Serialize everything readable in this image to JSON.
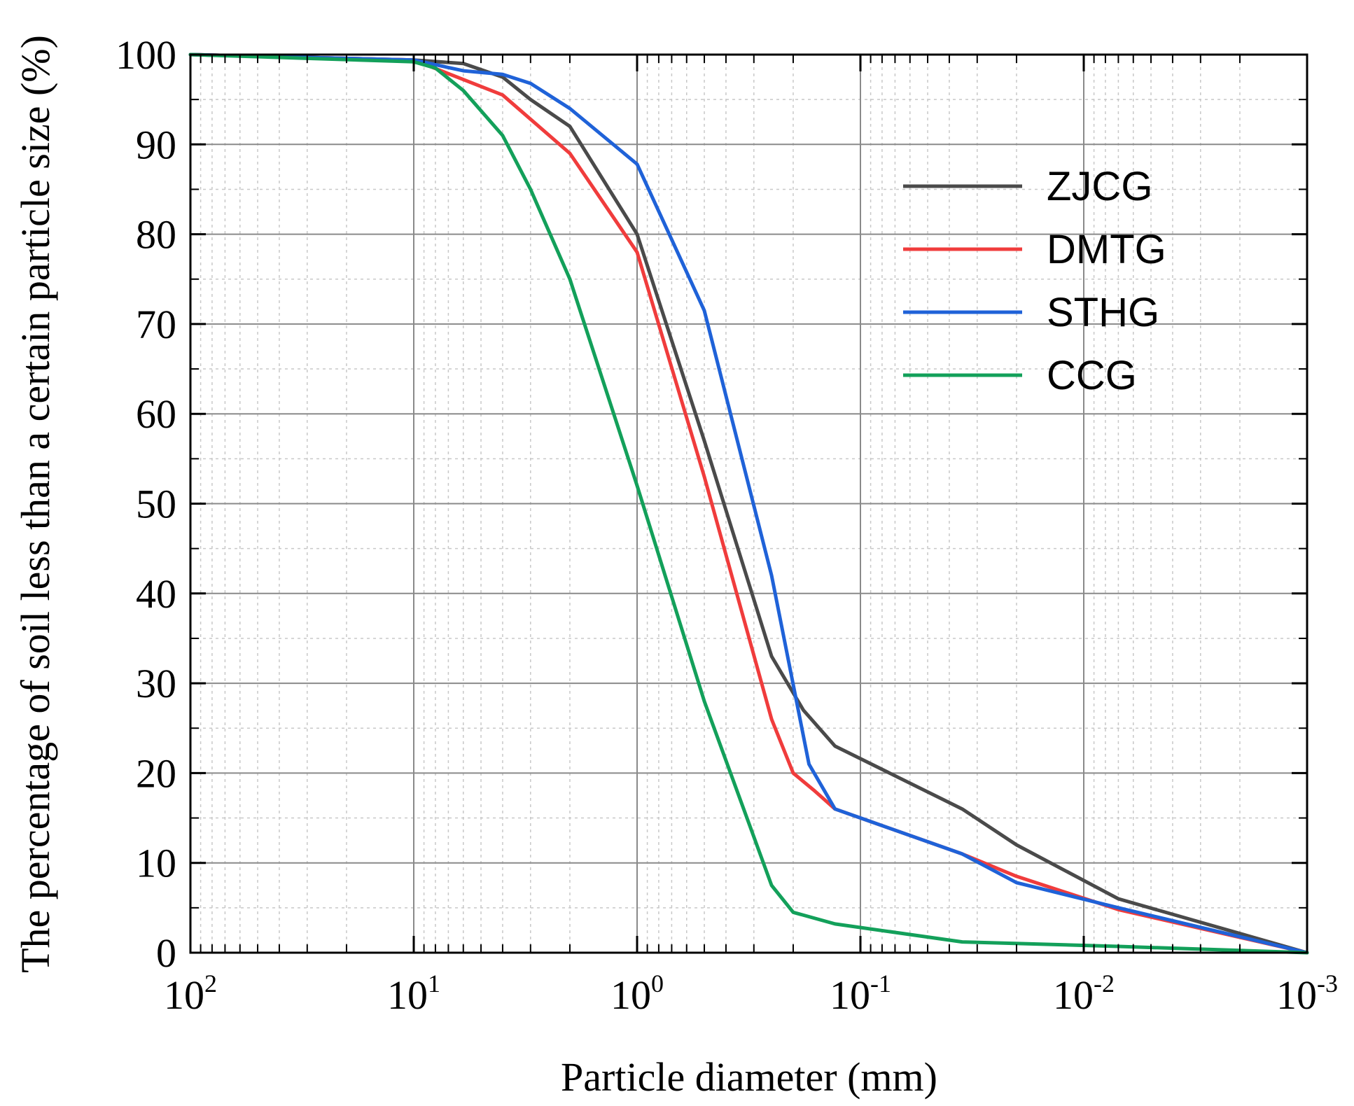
{
  "chart_data": {
    "type": "line",
    "title": "",
    "xlabel": "Particle diameter (mm)",
    "ylabel": "The percentage of soil less than a certain particle size (%)",
    "x_scale": "log",
    "x_reversed": true,
    "xlim": [
      100,
      0.001
    ],
    "ylim": [
      0,
      100
    ],
    "x_ticks": [
      {
        "value": 100,
        "base": "10",
        "exp": "2"
      },
      {
        "value": 10,
        "base": "10",
        "exp": "1"
      },
      {
        "value": 1,
        "base": "10",
        "exp": "0"
      },
      {
        "value": 0.1,
        "base": "10",
        "exp": "-1"
      },
      {
        "value": 0.01,
        "base": "10",
        "exp": "-2"
      },
      {
        "value": 0.001,
        "base": "10",
        "exp": "-3"
      }
    ],
    "y_ticks": [
      0,
      10,
      20,
      30,
      40,
      50,
      60,
      70,
      80,
      90,
      100
    ],
    "grid": true,
    "legend_position": "top-right",
    "series": [
      {
        "name": "ZJCG",
        "color": "#4a4a4a",
        "points": [
          [
            100,
            100
          ],
          [
            10,
            99.4
          ],
          [
            6,
            99
          ],
          [
            4,
            97.5
          ],
          [
            3,
            95
          ],
          [
            2,
            92
          ],
          [
            1,
            80
          ],
          [
            0.5,
            57
          ],
          [
            0.25,
            33
          ],
          [
            0.18,
            27
          ],
          [
            0.13,
            23
          ],
          [
            0.035,
            16
          ],
          [
            0.02,
            12
          ],
          [
            0.007,
            6
          ],
          [
            0.001,
            0
          ]
        ]
      },
      {
        "name": "DMTG",
        "color": "#f03c3c",
        "points": [
          [
            100,
            100
          ],
          [
            10,
            99.4
          ],
          [
            4,
            95.5
          ],
          [
            2,
            89
          ],
          [
            1,
            78
          ],
          [
            0.5,
            53
          ],
          [
            0.25,
            26
          ],
          [
            0.2,
            20
          ],
          [
            0.16,
            18
          ],
          [
            0.13,
            16
          ],
          [
            0.035,
            11
          ],
          [
            0.02,
            8.5
          ],
          [
            0.007,
            4.8
          ],
          [
            0.001,
            0
          ]
        ]
      },
      {
        "name": "STHG",
        "color": "#1f62d8",
        "points": [
          [
            100,
            100
          ],
          [
            10,
            99.4
          ],
          [
            6,
            98.2
          ],
          [
            4,
            97.8
          ],
          [
            3,
            96.8
          ],
          [
            2,
            94
          ],
          [
            1,
            87.8
          ],
          [
            0.5,
            71.5
          ],
          [
            0.25,
            42
          ],
          [
            0.17,
            21
          ],
          [
            0.13,
            16
          ],
          [
            0.1,
            15
          ],
          [
            0.035,
            11
          ],
          [
            0.02,
            7.8
          ],
          [
            0.007,
            5
          ],
          [
            0.001,
            0
          ]
        ]
      },
      {
        "name": "CCG",
        "color": "#13a05a",
        "points": [
          [
            100,
            100
          ],
          [
            10,
            99.2
          ],
          [
            8,
            98.5
          ],
          [
            6,
            96
          ],
          [
            4,
            91
          ],
          [
            3,
            85
          ],
          [
            2,
            75
          ],
          [
            1,
            52
          ],
          [
            0.5,
            28
          ],
          [
            0.25,
            7.5
          ],
          [
            0.2,
            4.5
          ],
          [
            0.13,
            3.2
          ],
          [
            0.035,
            1.2
          ],
          [
            0.007,
            0.7
          ],
          [
            0.001,
            0
          ]
        ]
      }
    ]
  }
}
